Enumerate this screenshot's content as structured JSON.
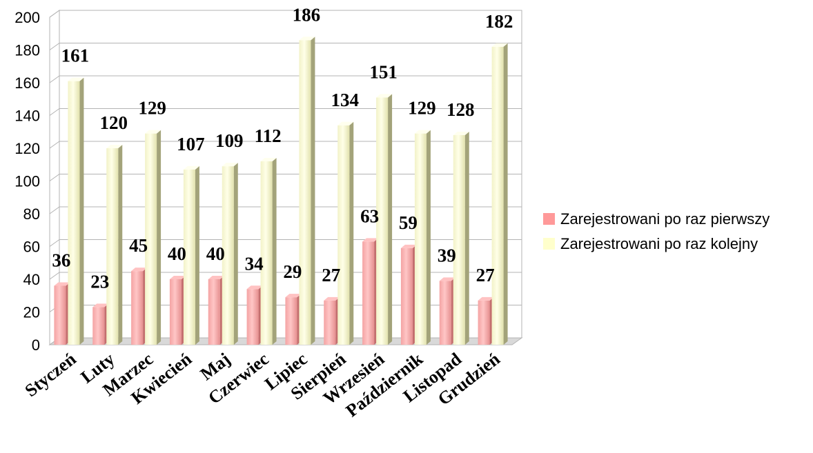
{
  "chart_data": {
    "type": "bar",
    "categories": [
      "Styczeń",
      "Luty",
      "Marzec",
      "Kwiecień",
      "Maj",
      "Czerwiec",
      "Lipiec",
      "Sierpień",
      "Wrzesień",
      "Październik",
      "Listopad",
      "Grudzień"
    ],
    "series": [
      {
        "name": "Zarejestrowani po raz pierwszy",
        "values": [
          36,
          23,
          45,
          40,
          40,
          34,
          29,
          27,
          63,
          59,
          39,
          27
        ],
        "color": "#ff9999"
      },
      {
        "name": "Zarejestrowani po raz kolejny",
        "values": [
          161,
          120,
          129,
          107,
          109,
          112,
          186,
          134,
          151,
          129,
          128,
          182
        ],
        "color": "#ffffcc"
      }
    ],
    "ylim": [
      0,
      200
    ],
    "yticks": [
      "0",
      "20",
      "40",
      "60",
      "80",
      "100",
      "120",
      "140",
      "160",
      "180",
      "200"
    ],
    "grid": true,
    "style": "3d",
    "legend": "right",
    "data_labels": true
  }
}
